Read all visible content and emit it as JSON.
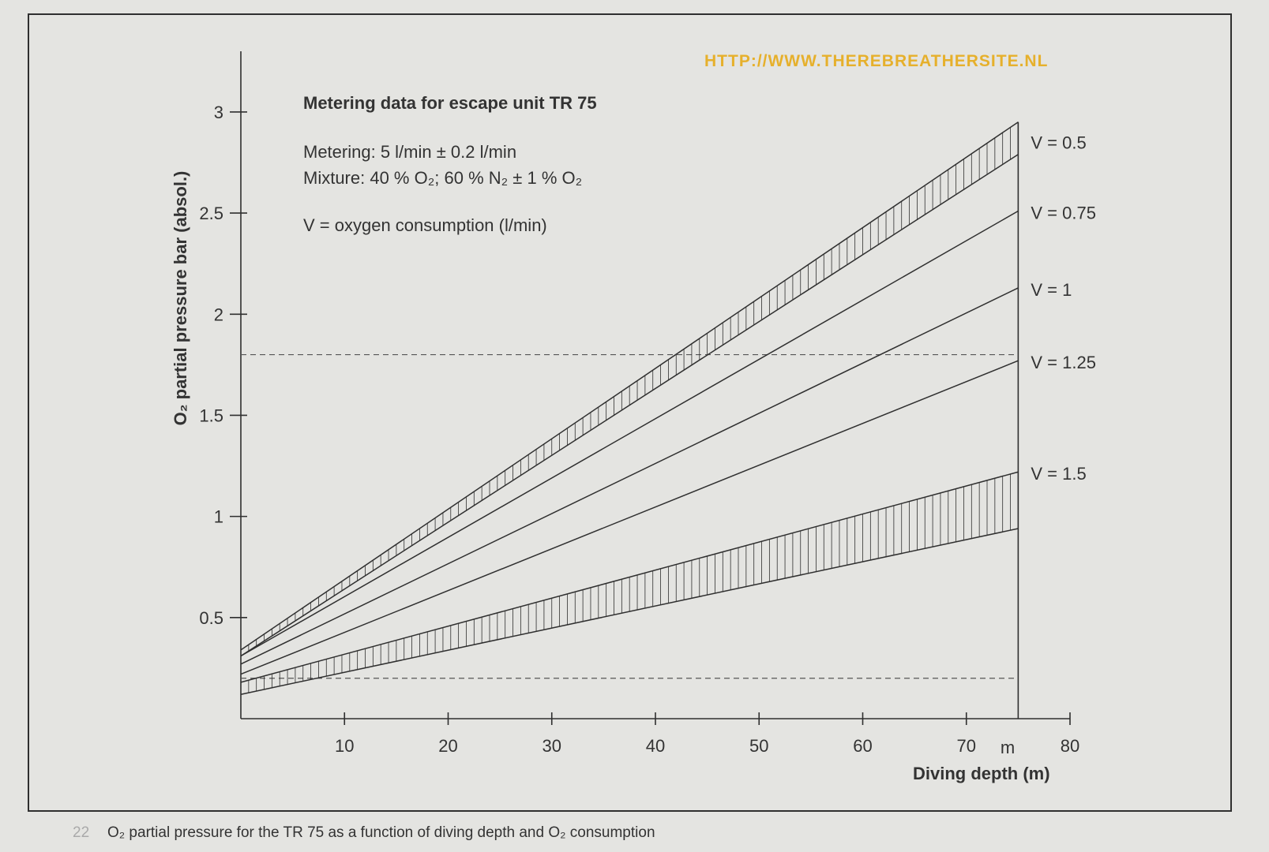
{
  "chart_data": {
    "type": "line",
    "title": "Metering data for escape unit TR 75",
    "notes": [
      "Metering: 5 l/min ± 0.2 l/min",
      "Mixture: 40 % O₂; 60 % N₂ ± 1 % O₂",
      "V = oxygen consumption (l/min)"
    ],
    "xlabel": "Diving depth (m)",
    "ylabel": "O₂ partial pressure   bar (absol.)",
    "x_ticks": [
      10,
      20,
      30,
      40,
      50,
      60,
      70,
      80
    ],
    "x_tick_labels": [
      "10",
      "20",
      "30",
      "40",
      "50",
      "60",
      "70",
      "80"
    ],
    "x_unit_label": "m",
    "y_ticks": [
      0.5,
      1,
      1.5,
      2,
      2.5,
      3
    ],
    "y_tick_labels": [
      "0.5",
      "1",
      "1.5",
      "2",
      "2.5",
      "3"
    ],
    "xlim": [
      0,
      80
    ],
    "ylim": [
      0,
      3.3
    ],
    "grid": false,
    "reference_lines": [
      {
        "axis": "y",
        "value": 1.8,
        "style": "dashed"
      },
      {
        "axis": "y",
        "value": 0.2,
        "style": "dashed"
      },
      {
        "axis": "x",
        "value": 75,
        "style": "solid"
      }
    ],
    "series": [
      {
        "name": "V = 0.5",
        "x": [
          0,
          75
        ],
        "y_upper": [
          0.34,
          2.95
        ],
        "y_lower": [
          0.31,
          2.79
        ],
        "band": true
      },
      {
        "name": "V = 0.75",
        "x": [
          0,
          75
        ],
        "y": [
          0.31,
          2.51
        ]
      },
      {
        "name": "V = 1",
        "x": [
          0,
          75
        ],
        "y": [
          0.27,
          2.13
        ]
      },
      {
        "name": "V = 1.25",
        "x": [
          0,
          75
        ],
        "y": [
          0.22,
          1.77
        ]
      },
      {
        "name": "V = 1.5",
        "x": [
          0,
          75
        ],
        "y_upper": [
          0.18,
          1.22
        ],
        "y_lower": [
          0.12,
          0.94
        ],
        "band": true
      }
    ]
  },
  "watermark": "HTTP://WWW.THEREBREATHERSITE.NL",
  "caption_number": "22",
  "caption": "O₂ partial pressure for the TR 75 as a function of diving depth and O₂ consumption",
  "colors": {
    "background": "#e4e4e1",
    "ink": "#2f2f2f",
    "watermark": "#e6b02c"
  }
}
